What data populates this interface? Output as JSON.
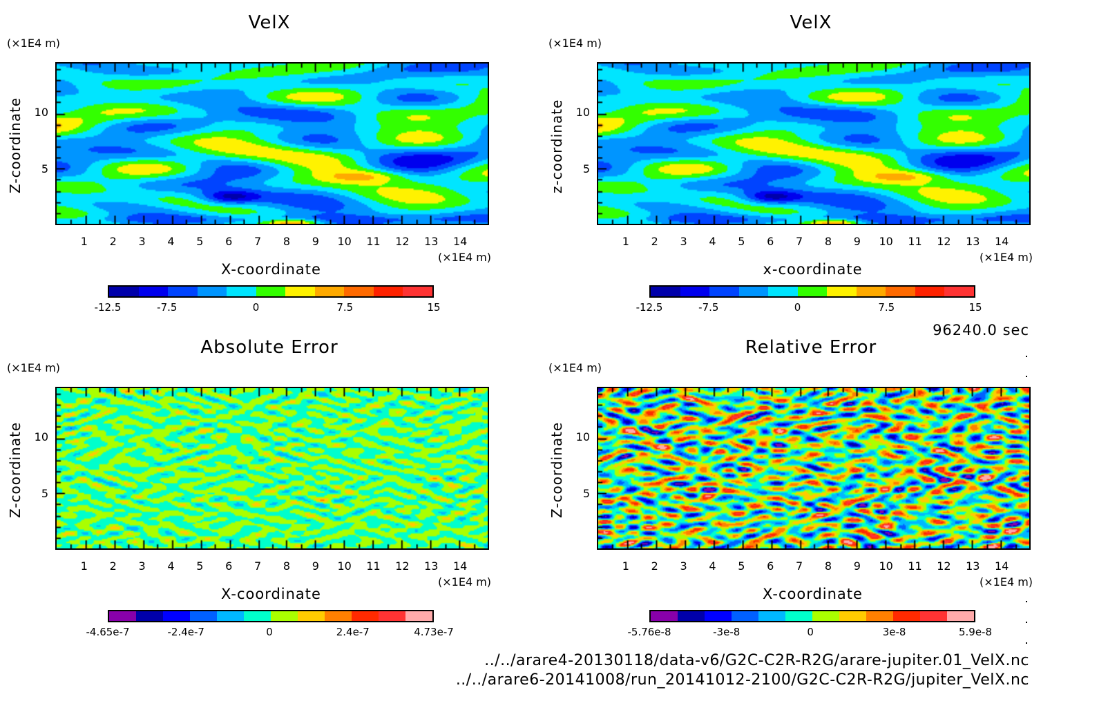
{
  "timestamp": "96240.0 sec",
  "files": [
    "../../arare4-20130118/data-v6/G2C-C2R-R2G/arare-jupiter.01_VelX.nc",
    "../../arare6-20141008/run_20141012-2100/G2C-C2R-R2G/jupiter_VelX.nc"
  ],
  "chart_data": [
    {
      "type": "heatmap",
      "title": "VelX",
      "xlabel": "X-coordinate",
      "ylabel": "Z-coordinate",
      "x_unit": "(×1E4 m)",
      "y_unit": "(×1E4 m)",
      "xlim": [
        0,
        15
      ],
      "ylim": [
        0,
        14.5
      ],
      "xticks": [
        "1",
        "2",
        "3",
        "4",
        "5",
        "6",
        "7",
        "8",
        "9",
        "10",
        "11",
        "12",
        "13",
        "14"
      ],
      "yticks": [
        "5",
        "10"
      ],
      "colorbar": {
        "colors": [
          "#0000aa",
          "#0000ee",
          "#0044ff",
          "#0095ff",
          "#00e5ff",
          "#33ff00",
          "#fff200",
          "#ffaa00",
          "#ff6a00",
          "#ff2200",
          "#ff3333",
          "#ffaaaa"
        ],
        "tick_labels": [
          "-12.5",
          "-7.5",
          "0",
          "7.5",
          "15"
        ],
        "tick_values": [
          -12.5,
          -7.5,
          0,
          7.5,
          15
        ],
        "range": [
          -12.5,
          15
        ]
      },
      "field": "smooth"
    },
    {
      "type": "heatmap",
      "title": "VelX",
      "xlabel": "x-coordinate",
      "ylabel": "z-coordinate",
      "x_unit": "(×1E4 m)",
      "y_unit": "(×1E4 m)",
      "xlim": [
        0,
        15
      ],
      "ylim": [
        0,
        14.5
      ],
      "xticks": [
        "1",
        "2",
        "3",
        "4",
        "5",
        "6",
        "7",
        "8",
        "9",
        "10",
        "11",
        "12",
        "13",
        "14"
      ],
      "yticks": [
        "5",
        "10"
      ],
      "colorbar": {
        "colors": [
          "#0000aa",
          "#0000ee",
          "#0044ff",
          "#0095ff",
          "#00e5ff",
          "#33ff00",
          "#fff200",
          "#ffaa00",
          "#ff6a00",
          "#ff2200",
          "#ff3333",
          "#ffaaaa"
        ],
        "tick_labels": [
          "-12.5",
          "-7.5",
          "0",
          "7.5",
          "15"
        ],
        "tick_values": [
          -12.5,
          -7.5,
          0,
          7.5,
          15
        ],
        "range": [
          -12.5,
          15
        ]
      },
      "field": "smooth"
    },
    {
      "type": "heatmap",
      "title": "Absolute Error",
      "xlabel": "X-coordinate",
      "ylabel": "Z-coordinate",
      "x_unit": "(×1E4 m)",
      "y_unit": "(×1E4 m)",
      "xlim": [
        0,
        15
      ],
      "ylim": [
        0,
        14.5
      ],
      "xticks": [
        "1",
        "2",
        "3",
        "4",
        "5",
        "6",
        "7",
        "8",
        "9",
        "10",
        "11",
        "12",
        "13",
        "14"
      ],
      "yticks": [
        "5",
        "10"
      ],
      "colorbar": {
        "colors": [
          "#8800aa",
          "#0000aa",
          "#0000ff",
          "#0060ff",
          "#00b8ff",
          "#00ffcc",
          "#aaff00",
          "#ffcc00",
          "#ff8000",
          "#ff2a00",
          "#ff3333",
          "#ffaaaa"
        ],
        "tick_labels": [
          "-4.65e-7",
          "-2.4e-7",
          "0",
          "2.4e-7",
          "4.73e-7"
        ],
        "tick_values": [
          -4.65e-07,
          -2.4e-07,
          0,
          2.4e-07,
          4.73e-07
        ],
        "range": [
          -4.65e-07,
          4.73e-07
        ]
      },
      "field": "noise-low"
    },
    {
      "type": "heatmap",
      "title": "Relative Error",
      "xlabel": "X-coordinate",
      "ylabel": "Z-coordinate",
      "x_unit": "(×1E4 m)",
      "y_unit": "(×1E4 m)",
      "xlim": [
        0,
        15
      ],
      "ylim": [
        0,
        14.5
      ],
      "xticks": [
        "1",
        "2",
        "3",
        "4",
        "5",
        "6",
        "7",
        "8",
        "9",
        "10",
        "11",
        "12",
        "13",
        "14"
      ],
      "yticks": [
        "5",
        "10"
      ],
      "colorbar": {
        "colors": [
          "#8800aa",
          "#0000aa",
          "#0000ff",
          "#0060ff",
          "#00b8ff",
          "#00ffcc",
          "#aaff00",
          "#ffcc00",
          "#ff8000",
          "#ff2a00",
          "#ff3333",
          "#ffaaaa"
        ],
        "tick_labels": [
          "-5.76e-8",
          "-3e-8",
          "0",
          "3e-8",
          "5.9e-8"
        ],
        "tick_values": [
          -5.76e-08,
          -3e-08,
          0,
          3e-08,
          5.9e-08
        ],
        "range": [
          -5.76e-08,
          5.9e-08
        ]
      },
      "field": "noise-full"
    }
  ]
}
